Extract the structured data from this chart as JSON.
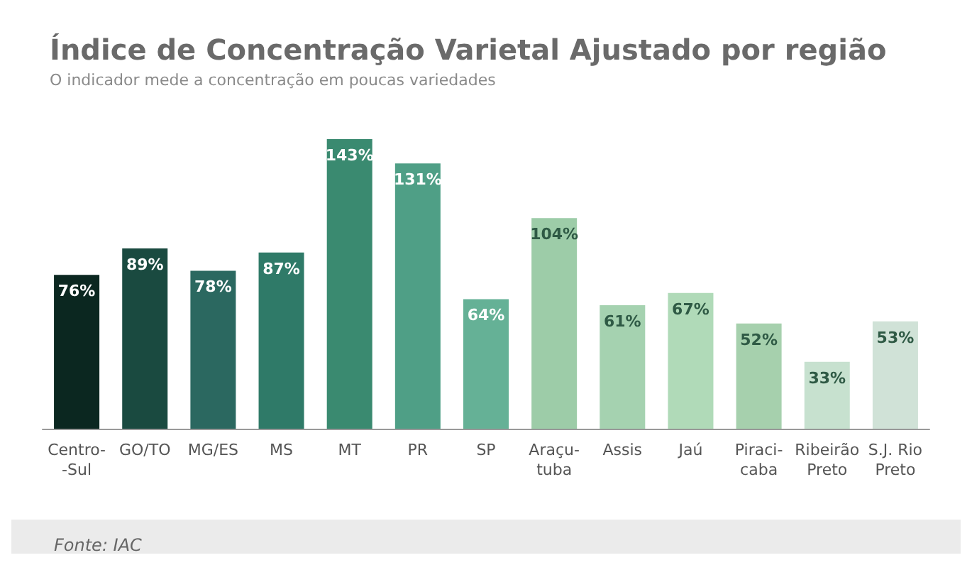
{
  "chart_data": {
    "type": "bar",
    "title": "Índice de Concentração Varietal Ajustado por região",
    "subtitle": "O indicador mede a concentração em poucas variedades",
    "categories": [
      "Centro-\n-Sul",
      "GO/TO",
      "MG/ES",
      "MS",
      "MT",
      "PR",
      "SP",
      "Araçu-\ntuba",
      "Assis",
      "Jaú",
      "Piraci-\ncaba",
      "Ribeirão\nPreto",
      "S.J. Rio\nPreto"
    ],
    "values": [
      76,
      89,
      78,
      87,
      143,
      131,
      64,
      104,
      61,
      67,
      52,
      33,
      53
    ],
    "value_labels": [
      "76%",
      "89%",
      "78%",
      "87%",
      "143%",
      "131%",
      "64%",
      "104%",
      "61%",
      "67%",
      "52%",
      "33%",
      "53%"
    ],
    "colors": [
      "#0b2720",
      "#1a4a40",
      "#2b6860",
      "#2f7a68",
      "#3a8a70",
      "#4f9f86",
      "#65b196",
      "#9dcca8",
      "#a5d2b0",
      "#b0dab8",
      "#a6d0ad",
      "#c7e1cf",
      "#d0e2d7"
    ],
    "annotations": [
      "Fonte: IAC"
    ],
    "grid": false
  }
}
